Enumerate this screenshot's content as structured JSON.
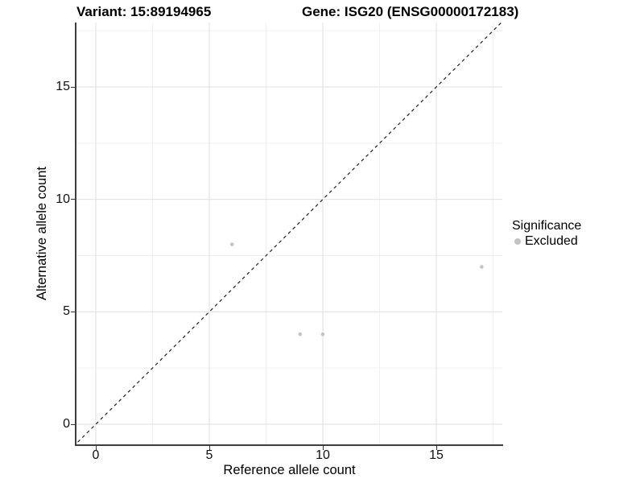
{
  "title": {
    "left": "Variant: 15:89194965",
    "right": "Gene: ISG20 (ENSG00000172183)"
  },
  "chart_data": {
    "type": "scatter",
    "title": "Variant: 15:89194965 | Gene: ISG20 (ENSG00000172183)",
    "xlabel": "Reference allele count",
    "ylabel": "Alternative allele count",
    "xlim": [
      -0.85,
      17.9
    ],
    "ylim": [
      -0.9,
      17.87
    ],
    "x_ticks": [
      0,
      5,
      10,
      15
    ],
    "y_ticks": [
      0,
      5,
      10,
      15
    ],
    "x_minor_ticks": [
      2.5,
      7.5,
      12.5,
      17.5
    ],
    "y_minor_ticks": [
      2.5,
      7.5,
      12.5,
      17.5
    ],
    "grid": true,
    "series": [
      {
        "name": "Excluded",
        "color": "#c3c3c3",
        "points": [
          {
            "x": 6,
            "y": 8
          },
          {
            "x": 9,
            "y": 4
          },
          {
            "x": 10,
            "y": 4
          },
          {
            "x": 17,
            "y": 7
          }
        ]
      }
    ],
    "reference_line": {
      "type": "identity",
      "style": "dashed",
      "color": "#1f1f1f"
    },
    "legend": {
      "position": "right",
      "title": "Significance",
      "entries": [
        {
          "label": "Excluded",
          "color": "#c3c3c3"
        }
      ]
    }
  },
  "colors": {
    "major_grid": "#e3e3e3",
    "minor_grid": "#f0f0f0",
    "axis_line": "#3d3d3d",
    "point": "#c3c3c3"
  }
}
